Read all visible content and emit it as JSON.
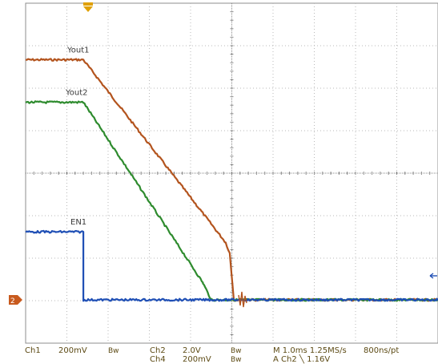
{
  "chart_data": {
    "type": "line",
    "title": "",
    "xlabel": "",
    "ylabel": "",
    "grid": true,
    "x_divisions": 10,
    "y_divisions": 8,
    "series": [
      {
        "name": "Yout1",
        "color": "#b3541e",
        "x": [
          0,
          1.4,
          4.85,
          4.95,
          5.05,
          5.2,
          10
        ],
        "y": [
          5.65,
          5.65,
          1.35,
          1.1,
          0.0,
          0.0,
          0.0
        ]
      },
      {
        "name": "Yout2",
        "color": "#2e8b2e",
        "x": [
          0,
          1.4,
          4.3,
          4.5,
          10
        ],
        "y": [
          4.65,
          4.65,
          0.4,
          0.0,
          0.0
        ]
      },
      {
        "name": "EN1",
        "color": "#1f4fb5",
        "x": [
          0,
          1.4,
          1.4,
          10
        ],
        "y": [
          1.6,
          1.6,
          0.0,
          0.0
        ]
      }
    ],
    "ground_marker": "2",
    "trigger_arrow": "top-center",
    "trigger_level_arrow": "right"
  },
  "status": {
    "ch1": "Ch1",
    "ch1_scale": "200mV",
    "bw1": "Bw",
    "ch2": "Ch2",
    "ch2_scale": "2.0V",
    "bw2": "Bw",
    "ch4": "Ch4",
    "ch4_scale": "200mV",
    "bw4": "Bw",
    "timebase": "M 1.0ms 1.25MS/s",
    "record": "800ns/pt",
    "trigger": "A  Ch2  ╲  1.16V"
  }
}
